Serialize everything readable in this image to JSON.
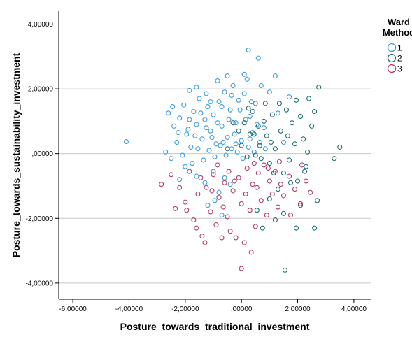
{
  "chart_data": {
    "type": "scatter",
    "xlabel": "Posture_towards_traditional_investment",
    "ylabel": "Posture_towards_sustainability_investment",
    "xlim": [
      -6.5,
      4.6
    ],
    "ylim": [
      -4.5,
      4.4
    ],
    "x_ticks": [
      -6,
      -4,
      -2,
      0,
      2,
      4
    ],
    "y_ticks": [
      -4,
      -2,
      0,
      2,
      4
    ],
    "x_tick_labels": [
      "-6,00000",
      "-4,00000",
      "-2,00000",
      ",00000",
      "2,00000",
      "4,00000"
    ],
    "y_tick_labels": [
      "-4,00000",
      "-2,00000",
      ",00000",
      "2,00000",
      "4,00000"
    ],
    "grid": "horizontal",
    "legend": {
      "title_line1": "Ward",
      "title_line2": "Method",
      "placement": "top-right"
    },
    "series": [
      {
        "name": "1",
        "color": "#3a9bdc",
        "points": [
          [
            -4.1,
            0.37
          ],
          [
            -2.6,
            1.25
          ],
          [
            -2.4,
            0.85
          ],
          [
            -2.2,
            1.1
          ],
          [
            -2.05,
            1.5
          ],
          [
            -1.95,
            0.6
          ],
          [
            -1.8,
            0.2
          ],
          [
            -1.7,
            1.3
          ],
          [
            -1.6,
            0.9
          ],
          [
            -1.5,
            1.7
          ],
          [
            -1.4,
            0.45
          ],
          [
            -1.3,
            1.05
          ],
          [
            -1.2,
            1.45
          ],
          [
            -1.1,
            0.7
          ],
          [
            -1.0,
            1.2
          ],
          [
            -0.9,
            0.3
          ],
          [
            -0.8,
            1.6
          ],
          [
            -0.7,
            0.85
          ],
          [
            -0.6,
            1.9
          ],
          [
            -0.5,
            0.5
          ],
          [
            -0.4,
            1.35
          ],
          [
            -0.3,
            2.1
          ],
          [
            -0.2,
            0.95
          ],
          [
            -0.1,
            1.65
          ],
          [
            0.0,
            0.4
          ],
          [
            0.1,
            1.85
          ],
          [
            0.2,
            2.3
          ],
          [
            0.3,
            1.15
          ],
          [
            0.4,
            0.65
          ],
          [
            0.5,
            1.55
          ],
          [
            0.6,
            2.95
          ],
          [
            0.25,
            3.2
          ],
          [
            -0.5,
            2.4
          ],
          [
            0.1,
            2.45
          ],
          [
            1.2,
            2.4
          ],
          [
            1.0,
            1.9
          ],
          [
            0.8,
            0.8
          ],
          [
            1.3,
            1.25
          ],
          [
            1.5,
            0.35
          ],
          [
            1.7,
            1.75
          ],
          [
            -2.7,
            0.05
          ],
          [
            -2.5,
            -0.15
          ],
          [
            -2.3,
            0.35
          ],
          [
            -2.1,
            -0.05
          ],
          [
            -1.9,
            0.75
          ],
          [
            -1.75,
            -0.3
          ],
          [
            -1.55,
            0.15
          ],
          [
            -1.35,
            -0.2
          ],
          [
            -1.15,
            0.1
          ],
          [
            -0.95,
            -0.1
          ],
          [
            -0.75,
            0.25
          ],
          [
            -0.55,
            -0.05
          ],
          [
            -0.35,
            0.15
          ],
          [
            -0.15,
            0.05
          ],
          [
            0.05,
            -0.15
          ],
          [
            0.25,
            0.2
          ],
          [
            0.45,
            0.05
          ],
          [
            0.65,
            0.35
          ],
          [
            0.85,
            0.15
          ],
          [
            -1.6,
            -0.7
          ],
          [
            -1.3,
            -0.9
          ],
          [
            -1.0,
            -0.55
          ],
          [
            -0.8,
            -1.2
          ],
          [
            -0.6,
            -0.75
          ],
          [
            -0.4,
            -0.95
          ],
          [
            -0.95,
            -1.45
          ],
          [
            -0.7,
            -1.9
          ],
          [
            -1.2,
            -1.6
          ],
          [
            -2.2,
            -0.8
          ],
          [
            -2.0,
            -0.4
          ],
          [
            -1.85,
            1.95
          ],
          [
            -1.6,
            2.05
          ],
          [
            -1.25,
            1.85
          ],
          [
            -0.85,
            2.25
          ],
          [
            -0.35,
            1.8
          ],
          [
            0.35,
            1.6
          ],
          [
            0.7,
            2.1
          ],
          [
            -0.25,
            0.6
          ],
          [
            -0.45,
            1.05
          ],
          [
            -0.65,
            0.35
          ],
          [
            -0.85,
            0.95
          ],
          [
            -1.05,
            0.5
          ],
          [
            -1.25,
            0.8
          ],
          [
            -1.45,
            1.25
          ],
          [
            -1.65,
            0.55
          ],
          [
            -1.85,
            1.05
          ],
          [
            -2.25,
            0.65
          ],
          [
            -2.45,
            1.45
          ],
          [
            0.15,
            1.05
          ],
          [
            0.55,
            0.9
          ],
          [
            -0.05,
            1.35
          ],
          [
            -0.2,
            0.3
          ],
          [
            0.3,
            0.45
          ],
          [
            -0.7,
            1.45
          ],
          [
            -1.1,
            1.6
          ]
        ]
      },
      {
        "name": "2",
        "color": "#1f6e6e",
        "points": [
          [
            3.5,
            0.2
          ],
          [
            3.3,
            -0.15
          ],
          [
            2.75,
            2.05
          ],
          [
            2.6,
            1.3
          ],
          [
            2.5,
            0.85
          ],
          [
            2.4,
            1.7
          ],
          [
            2.3,
            -0.4
          ],
          [
            2.2,
            0.45
          ],
          [
            2.1,
            1.15
          ],
          [
            2.0,
            -0.85
          ],
          [
            1.9,
            0.3
          ],
          [
            1.8,
            0.95
          ],
          [
            1.7,
            -0.2
          ],
          [
            1.6,
            1.35
          ],
          [
            1.5,
            -0.6
          ],
          [
            1.4,
            0.7
          ],
          [
            1.3,
            -1.1
          ],
          [
            1.2,
            0.15
          ],
          [
            1.1,
            1.2
          ],
          [
            1.0,
            -0.3
          ],
          [
            0.9,
            0.55
          ],
          [
            0.8,
            1.0
          ],
          [
            0.7,
            -0.15
          ],
          [
            0.6,
            0.85
          ],
          [
            0.5,
            -0.05
          ],
          [
            0.4,
            1.3
          ],
          [
            0.3,
            0.6
          ],
          [
            0.2,
            -0.1
          ],
          [
            0.1,
            0.95
          ],
          [
            0.0,
            0.25
          ],
          [
            2.7,
            -1.45
          ],
          [
            2.6,
            -2.3
          ],
          [
            2.1,
            -1.6
          ],
          [
            1.95,
            -2.3
          ],
          [
            1.55,
            -3.6
          ],
          [
            1.5,
            -1.85
          ],
          [
            1.2,
            -2.05
          ],
          [
            1.0,
            -1.4
          ],
          [
            0.75,
            -2.3
          ],
          [
            0.55,
            -1.75
          ],
          [
            2.35,
            0.05
          ],
          [
            1.95,
            1.65
          ],
          [
            1.65,
            0.55
          ],
          [
            1.35,
            1.55
          ],
          [
            1.05,
            0.35
          ],
          [
            0.85,
            1.55
          ],
          [
            0.65,
            0.25
          ],
          [
            0.45,
            0.6
          ],
          [
            0.25,
            1.4
          ],
          [
            -0.1,
            0.7
          ],
          [
            -0.3,
            0.95
          ],
          [
            -0.5,
            0.15
          ],
          [
            1.75,
            -0.9
          ],
          [
            2.25,
            -0.55
          ],
          [
            1.15,
            -0.6
          ]
        ]
      },
      {
        "name": "3",
        "color": "#b23a6f",
        "points": [
          [
            -2.85,
            -0.95
          ],
          [
            -2.5,
            -0.65
          ],
          [
            -2.35,
            -1.7
          ],
          [
            -2.2,
            -1.05
          ],
          [
            -2.0,
            -1.5
          ],
          [
            -1.85,
            -0.55
          ],
          [
            -1.7,
            -2.05
          ],
          [
            -1.55,
            -1.25
          ],
          [
            -1.4,
            -2.55
          ],
          [
            -1.3,
            -2.75
          ],
          [
            -1.25,
            -1.05
          ],
          [
            -1.1,
            -1.8
          ],
          [
            -1.0,
            -0.65
          ],
          [
            -0.9,
            -2.2
          ],
          [
            -0.8,
            -1.35
          ],
          [
            -0.7,
            -2.6
          ],
          [
            -0.6,
            -0.9
          ],
          [
            -0.5,
            -1.95
          ],
          [
            -0.4,
            -2.4
          ],
          [
            -0.3,
            -1.15
          ],
          [
            -0.2,
            -2.6
          ],
          [
            -0.1,
            -0.75
          ],
          [
            0.0,
            -1.55
          ],
          [
            0.1,
            -2.75
          ],
          [
            0.2,
            -0.45
          ],
          [
            0.3,
            -1.75
          ],
          [
            0.4,
            -0.95
          ],
          [
            0.5,
            -2.25
          ],
          [
            0.6,
            -0.6
          ],
          [
            0.7,
            -1.45
          ],
          [
            0.8,
            -0.35
          ],
          [
            0.9,
            -1.9
          ],
          [
            1.0,
            -0.85
          ],
          [
            1.1,
            -1.25
          ],
          [
            1.2,
            -0.55
          ],
          [
            1.3,
            -1.65
          ],
          [
            1.4,
            -0.95
          ],
          [
            1.5,
            -1.3
          ],
          [
            1.7,
            -0.7
          ],
          [
            1.9,
            -1.1
          ],
          [
            2.1,
            -1.55
          ],
          [
            2.3,
            -0.85
          ],
          [
            2.45,
            -1.2
          ],
          [
            0.0,
            -3.55
          ],
          [
            0.35,
            -3.05
          ],
          [
            -1.6,
            -2.3
          ],
          [
            -1.95,
            -1.75
          ],
          [
            -1.45,
            -0.75
          ],
          [
            -1.05,
            -1.15
          ],
          [
            -0.65,
            -1.65
          ],
          [
            -0.25,
            -0.85
          ],
          [
            0.15,
            -1.25
          ],
          [
            0.55,
            -1.05
          ],
          [
            0.95,
            -0.45
          ],
          [
            1.35,
            -0.25
          ],
          [
            -0.85,
            -0.35
          ],
          [
            -0.45,
            -0.55
          ],
          [
            0.45,
            -0.3
          ],
          [
            1.75,
            -1.9
          ],
          [
            2.15,
            -0.35
          ]
        ]
      }
    ]
  }
}
